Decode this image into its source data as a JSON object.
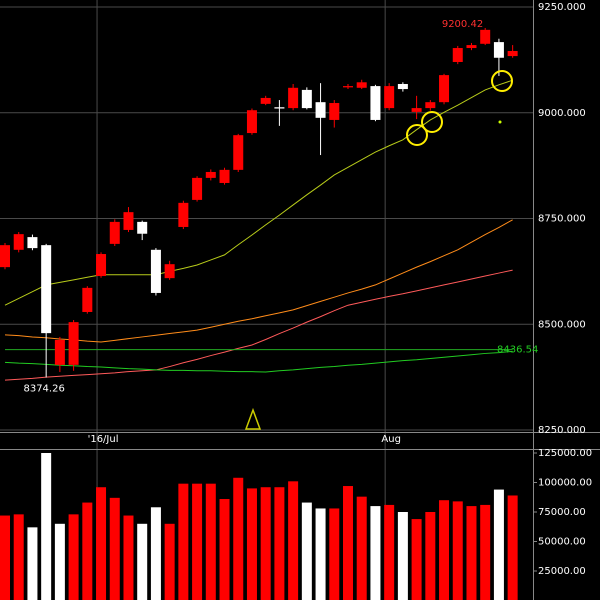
{
  "chart_data": [
    {
      "type": "candlestick",
      "categories": [
        null,
        null,
        null,
        null,
        null,
        null,
        null,
        "'16/Jul",
        null,
        null,
        null,
        null,
        null,
        null,
        null,
        null,
        null,
        null,
        null,
        null,
        null,
        null,
        null,
        null,
        null,
        null,
        null,
        null,
        "Aug",
        null,
        null,
        null,
        null,
        null,
        null,
        null,
        null,
        null
      ],
      "open": [
        8635,
        8676,
        8706,
        8687,
        8404,
        8404,
        8529,
        8614,
        8690,
        8723,
        8742,
        8676,
        8609,
        8730,
        8794,
        8846,
        8834,
        8865,
        8952,
        9021,
        9013,
        9011,
        9054,
        9025,
        8983,
        9060,
        9059,
        9063,
        9011,
        9068,
        9002,
        9011,
        9025,
        9120,
        9153,
        9163,
        9167,
        9134
      ],
      "high": [
        8692,
        8718,
        8712,
        8690,
        8470,
        8510,
        8590,
        8670,
        8748,
        8777,
        8745,
        8680,
        8650,
        8792,
        8850,
        8866,
        8870,
        8950,
        9010,
        9040,
        9030,
        9068,
        9060,
        9070,
        9030,
        9068,
        9078,
        9066,
        9070,
        9072,
        9040,
        9030,
        9092,
        9158,
        9165,
        9200.42,
        9175,
        9160
      ],
      "low": [
        8630,
        8670,
        8675,
        8374.26,
        8387,
        8390,
        8525,
        8610,
        8685,
        8718,
        8699,
        8568,
        8605,
        8725,
        8790,
        8840,
        8830,
        8860,
        8948,
        9018,
        8969,
        9006,
        9008,
        8900,
        8965,
        9056,
        9056,
        8980,
        9006,
        9050,
        8985,
        9005,
        9020,
        9115,
        9148,
        9160,
        9087,
        9130
      ],
      "close": [
        8687,
        8713,
        8680,
        8479,
        8463,
        8505,
        8586,
        8666,
        8742,
        8765,
        8714,
        8574,
        8642,
        8787,
        8846,
        8860,
        8865,
        8947,
        9006,
        9035,
        9010,
        9059,
        9011,
        8988,
        9023,
        9063,
        9072,
        8983,
        9063,
        9056,
        9011,
        9025,
        9089,
        9153,
        9160,
        9196,
        9130,
        9146
      ],
      "up_color": "#ff0000",
      "down_color": "#ffffff",
      "series": [
        {
          "color": "#b8cc1a",
          "values": [
            8545,
            8561,
            8577,
            8593,
            8599,
            8605,
            8611,
            8617,
            8617,
            8617,
            8617,
            8617,
            8625,
            8632,
            8640,
            8652,
            8664,
            8688,
            8711,
            8735,
            8758,
            8782,
            8806,
            8829,
            8853,
            8871,
            8889,
            8907,
            8922,
            8936,
            8960,
            8983,
            9001,
            9018,
            9036,
            9054,
            9066,
            9077
          ]
        },
        {
          "color": "#ff8c1a",
          "values": [
            8475,
            8473,
            8470,
            8468,
            8465,
            8463,
            8460,
            8458,
            8462,
            8466,
            8470,
            8474,
            8478,
            8482,
            8486,
            8493,
            8500,
            8507,
            8513,
            8520,
            8527,
            8534,
            8544,
            8554,
            8564,
            8574,
            8583,
            8593,
            8607,
            8621,
            8635,
            8648,
            8662,
            8676,
            8694,
            8712,
            8729,
            8747
          ]
        },
        {
          "color": "#ff5a5a",
          "values": [
            8368,
            8370,
            8372,
            8375,
            8377,
            8379,
            8381,
            8383,
            8385,
            8388,
            8390,
            8392,
            8400,
            8409,
            8417,
            8426,
            8434,
            8443,
            8451,
            8464,
            8478,
            8491,
            8505,
            8518,
            8532,
            8545,
            8552,
            8559,
            8566,
            8572,
            8579,
            8586,
            8593,
            8600,
            8607,
            8614,
            8621,
            8628
          ]
        },
        {
          "color": "#22cc22",
          "values": [
            8410,
            8408,
            8407,
            8405,
            8403,
            8402,
            8400,
            8399,
            8397,
            8395,
            8394,
            8392,
            8391,
            8391,
            8390,
            8390,
            8389,
            8388,
            8388,
            8387,
            8390,
            8392,
            8395,
            8398,
            8400,
            8403,
            8405,
            8408,
            8411,
            8414,
            8416,
            8419,
            8422,
            8425,
            8428,
            8431,
            8433,
            8436
          ]
        },
        {
          "color": "#22aa22",
          "values": [
            8440,
            8440,
            8440,
            8440,
            8440,
            8440,
            8440,
            8440,
            8440,
            8440,
            8440,
            8440,
            8440,
            8440,
            8440,
            8440,
            8440,
            8440,
            8440,
            8440,
            8440,
            8440,
            8440,
            8440,
            8440,
            8440,
            8440,
            8440,
            8440,
            8440,
            8440,
            8440,
            8440,
            8440,
            8440,
            8440,
            8440,
            8440
          ]
        }
      ],
      "annotations": [
        "9200.42",
        "8374.26",
        "8436.54"
      ],
      "ylim": [
        8250,
        9250
      ],
      "yticks": [
        {
          "value": 8250,
          "label": "8250.000"
        },
        {
          "value": 8500,
          "label": "8500.000"
        },
        {
          "value": 8750,
          "label": "8750.000"
        },
        {
          "value": 9000,
          "label": "9000.000"
        },
        {
          "value": 9250,
          "label": "9250.000"
        }
      ],
      "grid": true
    },
    {
      "type": "bar",
      "values": [
        72000,
        73000,
        62000,
        125000,
        65000,
        73000,
        83000,
        96000,
        87000,
        72000,
        65000,
        79000,
        65000,
        99000,
        99000,
        99000,
        86000,
        104000,
        95000,
        96000,
        96000,
        101000,
        83000,
        78000,
        78000,
        97000,
        88000,
        80000,
        81000,
        75000,
        69000,
        75000,
        85000,
        84000,
        80000,
        81000,
        94000,
        89000
      ],
      "colors": [
        "#ff0000",
        "#ff0000",
        "#ffffff",
        "#ffffff",
        "#ffffff",
        "#ff0000",
        "#ff0000",
        "#ff0000",
        "#ff0000",
        "#ff0000",
        "#ffffff",
        "#ffffff",
        "#ff0000",
        "#ff0000",
        "#ff0000",
        "#ff0000",
        "#ff0000",
        "#ff0000",
        "#ff0000",
        "#ff0000",
        "#ff0000",
        "#ff0000",
        "#ffffff",
        "#ffffff",
        "#ff0000",
        "#ff0000",
        "#ff0000",
        "#ffffff",
        "#ff0000",
        "#ffffff",
        "#ff0000",
        "#ff0000",
        "#ff0000",
        "#ff0000",
        "#ff0000",
        "#ff0000",
        "#ffffff",
        "#ff0000"
      ],
      "ylim": [
        0,
        125000
      ],
      "yticks": [
        {
          "value": 25000,
          "label": "25000.00"
        },
        {
          "value": 50000,
          "label": "50000.00"
        },
        {
          "value": 75000,
          "label": "75000.00"
        },
        {
          "value": 100000,
          "label": "100000.00"
        },
        {
          "value": 125000,
          "label": "125000.00"
        }
      ]
    }
  ]
}
